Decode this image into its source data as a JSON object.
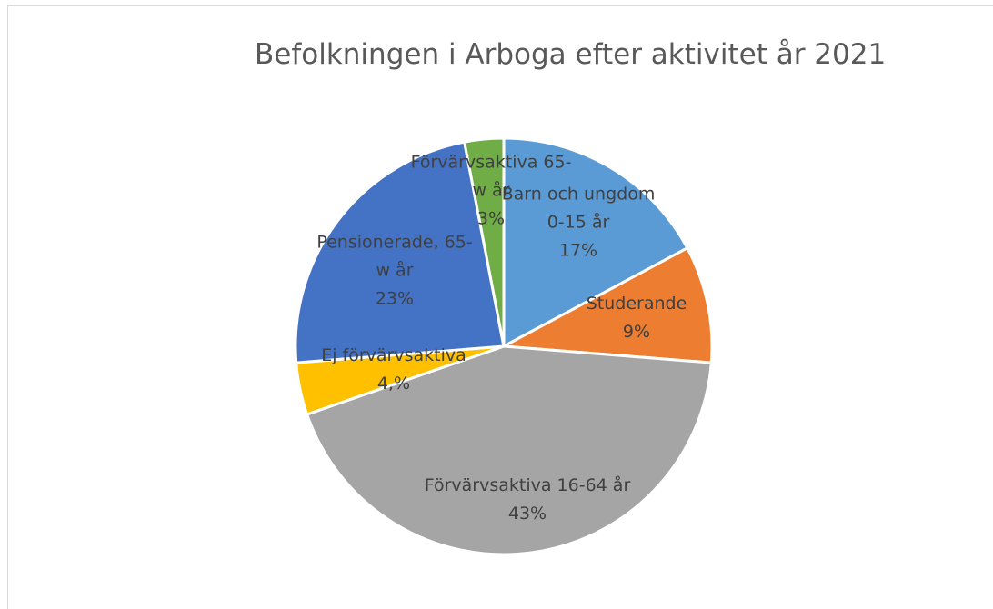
{
  "chart_data": {
    "type": "pie",
    "title": "Befolkningen i Arboga efter aktivitet år 2021",
    "categories": [
      "Barn och ungdom 0-15 år",
      "Studerande",
      "Förvärvsaktiva 16-64 år",
      "Ej förvärvsaktiva",
      "Pensionerade, 65-w år",
      "Förvärvsaktiva 65-w år"
    ],
    "values": [
      17,
      9,
      43,
      4,
      23,
      3
    ],
    "value_labels": [
      "17%",
      "9%",
      "43%",
      "4,%",
      "23%",
      "3%"
    ],
    "colors": [
      "#5b9bd5",
      "#ed7d31",
      "#a5a5a5",
      "#ffc000",
      "#4472c4",
      "#70ad47"
    ]
  }
}
